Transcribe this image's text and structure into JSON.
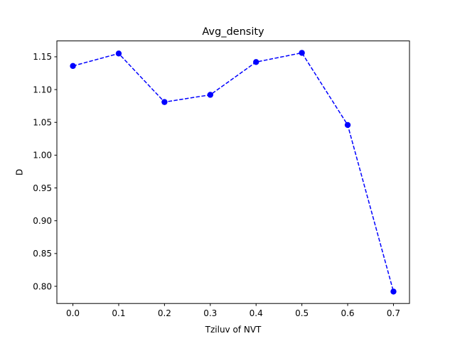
{
  "chart_data": {
    "type": "line",
    "title": "Avg_density",
    "xlabel": "Tziluv of NVT",
    "ylabel": "D",
    "x": [
      0.0,
      0.1,
      0.2,
      0.3,
      0.4,
      0.5,
      0.6,
      0.7
    ],
    "series": [
      {
        "values": [
          1.136,
          1.155,
          1.081,
          1.092,
          1.142,
          1.156,
          1.046,
          0.792
        ],
        "color": "#0000ff",
        "line_style": "dashed",
        "marker": "circle"
      }
    ],
    "xlim": [
      -0.035,
      0.735
    ],
    "ylim": [
      0.7738,
      1.1742
    ],
    "xticks": [
      0.0,
      0.1,
      0.2,
      0.3,
      0.4,
      0.5,
      0.6,
      0.7
    ],
    "xtick_labels": [
      "0.0",
      "0.1",
      "0.2",
      "0.3",
      "0.4",
      "0.5",
      "0.6",
      "0.7"
    ],
    "yticks": [
      0.8,
      0.85,
      0.9,
      0.95,
      1.0,
      1.05,
      1.1,
      1.15
    ],
    "ytick_labels": [
      "0.80",
      "0.85",
      "0.90",
      "0.95",
      "1.00",
      "1.05",
      "1.10",
      "1.15"
    ],
    "grid": false
  }
}
